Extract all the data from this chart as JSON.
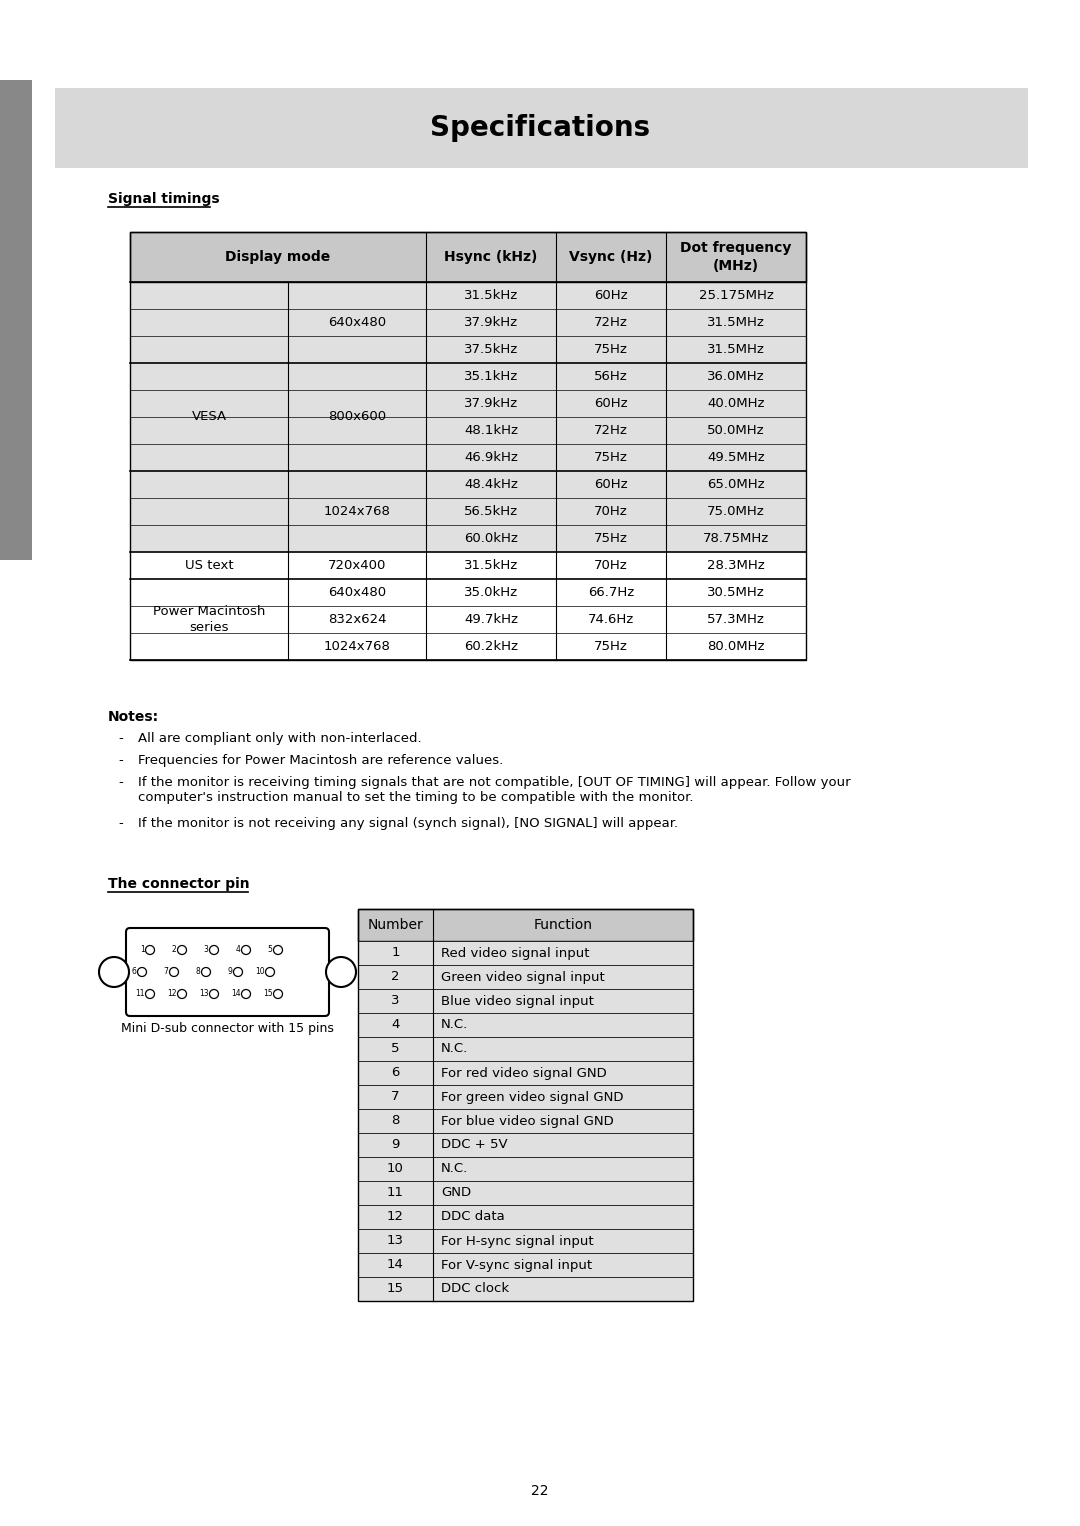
{
  "title": "Specifications",
  "title_bg": "#d8d8d8",
  "page_bg": "#ffffff",
  "sidebar_color": "#888888",
  "section1_label": "Signal timings",
  "signal_table_rows": [
    [
      "31.5kHz",
      "60Hz",
      "25.175MHz"
    ],
    [
      "37.9kHz",
      "72Hz",
      "31.5MHz"
    ],
    [
      "37.5kHz",
      "75Hz",
      "31.5MHz"
    ],
    [
      "35.1kHz",
      "56Hz",
      "36.0MHz"
    ],
    [
      "37.9kHz",
      "60Hz",
      "40.0MHz"
    ],
    [
      "48.1kHz",
      "72Hz",
      "50.0MHz"
    ],
    [
      "46.9kHz",
      "75Hz",
      "49.5MHz"
    ],
    [
      "48.4kHz",
      "60Hz",
      "65.0MHz"
    ],
    [
      "56.5kHz",
      "70Hz",
      "75.0MHz"
    ],
    [
      "60.0kHz",
      "75Hz",
      "78.75MHz"
    ],
    [
      "31.5kHz",
      "70Hz",
      "28.3MHz"
    ],
    [
      "35.0kHz",
      "66.7Hz",
      "30.5MHz"
    ],
    [
      "49.7kHz",
      "74.6Hz",
      "57.3MHz"
    ],
    [
      "60.2kHz",
      "75Hz",
      "80.0MHz"
    ]
  ],
  "notes_bold": "Notes:",
  "notes": [
    "All are compliant only with non-interlaced.",
    "Frequencies for Power Macintosh are reference values.",
    "If the monitor is receiving timing signals that are not compatible, [OUT OF TIMING] will appear. Follow your\ncomputer's instruction manual to set the timing to be compatible with the monitor.",
    "If the monitor is not receiving any signal (synch signal), [NO SIGNAL] will appear."
  ],
  "section2_label": "The connector pin",
  "connector_label": "Mini D-sub connector with 15 pins",
  "pin_table_rows": [
    [
      "1",
      "Red video signal input"
    ],
    [
      "2",
      "Green video signal input"
    ],
    [
      "3",
      "Blue video signal input"
    ],
    [
      "4",
      "N.C."
    ],
    [
      "5",
      "N.C."
    ],
    [
      "6",
      "For red video signal GND"
    ],
    [
      "7",
      "For green video signal GND"
    ],
    [
      "8",
      "For blue video signal GND"
    ],
    [
      "9",
      "DDC + 5V"
    ],
    [
      "10",
      "N.C."
    ],
    [
      "11",
      "GND"
    ],
    [
      "12",
      "DDC data"
    ],
    [
      "13",
      "For H-sync signal input"
    ],
    [
      "14",
      "For V-sync signal input"
    ],
    [
      "15",
      "DDC clock"
    ]
  ],
  "page_number": "22",
  "table_header_bg": "#c8c8c8",
  "table_row_bg_light": "#e0e0e0",
  "table_row_bg_white": "#ffffff",
  "table_border": "#000000"
}
